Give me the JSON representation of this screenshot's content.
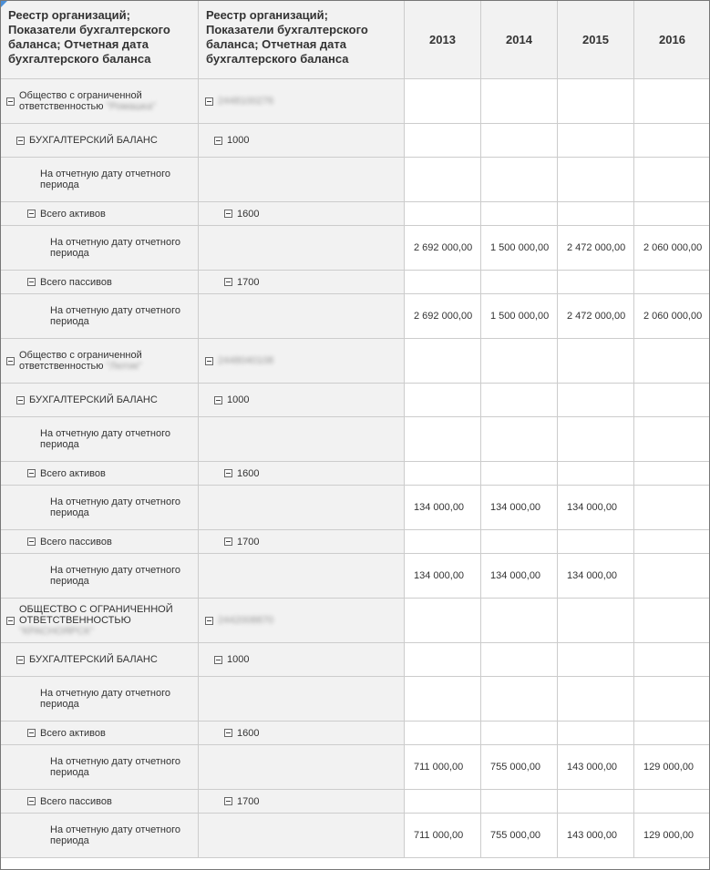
{
  "header": {
    "col1": "Реестр организаций; Показатели бухгалтерского баланса; Отчетная дата бухгалтерского баланса",
    "col2": "Реестр организаций; Показатели бухгалтерского баланса; Отчетная дата бухгалтерского баланса",
    "years": [
      "2013",
      "2014",
      "2015",
      "2016"
    ]
  },
  "labels": {
    "balance": "БУХГАЛТЕРСКИЙ БАЛАНС",
    "balance_code": "1000",
    "date": "На отчетную дату отчетного периода",
    "assets": "Всего активов",
    "assets_code": "1600",
    "liabilities": "Всего пассивов",
    "liabilities_code": "1700"
  },
  "organizations": [
    {
      "name": "Общество с ограниченной ответственностью",
      "name_hidden": "\"Ромашка\"",
      "inn_hidden": "2448100276",
      "assets": [
        "2 692 000,00",
        "1 500 000,00",
        "2 472 000,00",
        "2 060 000,00"
      ],
      "liabilities": [
        "2 692 000,00",
        "1 500 000,00",
        "2 472 000,00",
        "2 060 000,00"
      ]
    },
    {
      "name": "Общество с ограниченной ответственностью",
      "name_hidden": "\"Лютик\"",
      "inn_hidden": "2448040108",
      "assets": [
        "134 000,00",
        "134 000,00",
        "134 000,00",
        ""
      ],
      "liabilities": [
        "134 000,00",
        "134 000,00",
        "134 000,00",
        ""
      ]
    },
    {
      "name": "ОБЩЕСТВО С ОГРАНИЧЕННОЙ ОТВЕТСТВЕННОСТЬЮ",
      "name_hidden": "\"КРАСНОЯРСК\"",
      "inn_hidden": "2442008870",
      "assets": [
        "711 000,00",
        "755 000,00",
        "143 000,00",
        "129 000,00"
      ],
      "liabilities": [
        "711 000,00",
        "755 000,00",
        "143 000,00",
        "129 000,00"
      ]
    }
  ]
}
